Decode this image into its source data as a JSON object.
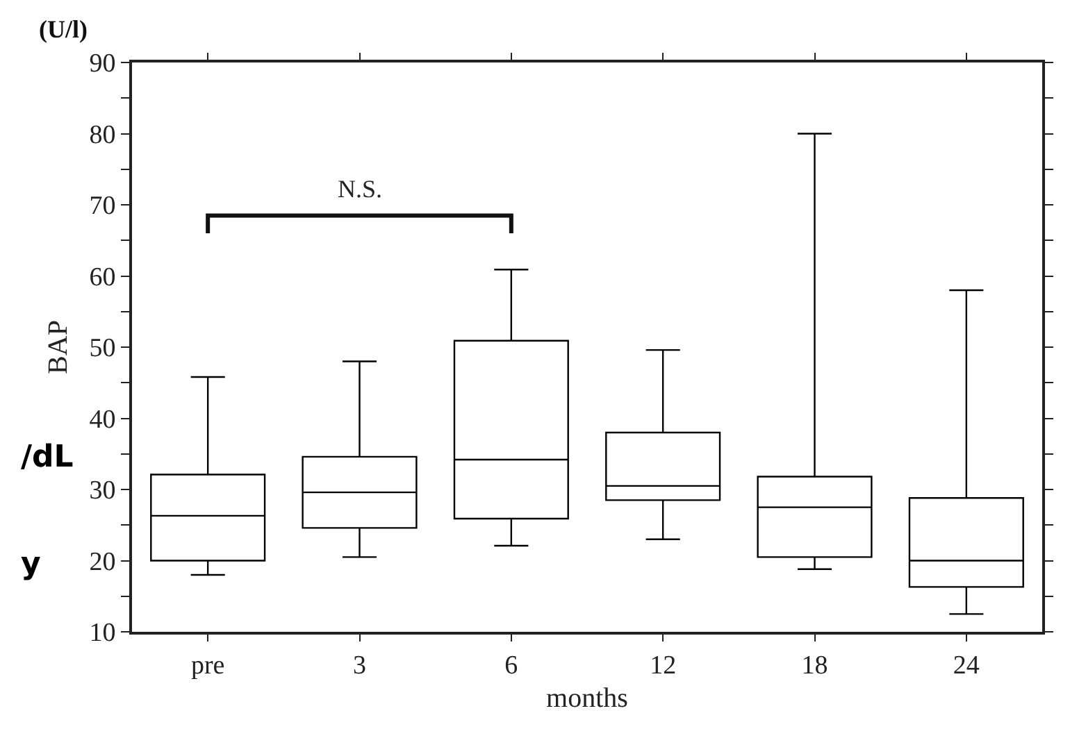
{
  "chart_data": {
    "type": "box",
    "xlabel": "months",
    "ylabel": "BAP",
    "categories": [
      "pre",
      "3",
      "6",
      "12",
      "18",
      "24"
    ],
    "boxes": [
      {
        "low": 18,
        "q1": 20,
        "median": 26.3,
        "q3": 32.1,
        "high": 45.8
      },
      {
        "low": 20.5,
        "q1": 24.6,
        "median": 29.6,
        "q3": 34.6,
        "high": 48
      },
      {
        "low": 22.1,
        "q1": 25.9,
        "median": 34.2,
        "q3": 50.9,
        "high": 60.9
      },
      {
        "low": 23,
        "q1": 28.5,
        "median": 30.5,
        "q3": 38,
        "high": 49.6
      },
      {
        "low": 18.8,
        "q1": 20.5,
        "median": 27.5,
        "q3": 31.8,
        "high": 80
      },
      {
        "low": 12.5,
        "q1": 16.3,
        "median": 20,
        "q3": 28.8,
        "high": 58
      }
    ],
    "color": "#000000",
    "ylim": [
      10,
      90
    ],
    "yticks": [
      10,
      {
        "value": 15,
        "label": null
      },
      20,
      {
        "value": 25,
        "label": null
      },
      30,
      {
        "value": 35,
        "label": null
      },
      40,
      {
        "value": 45,
        "label": null
      },
      50,
      {
        "value": 55,
        "label": null
      },
      60,
      {
        "value": 65,
        "label": null
      },
      70,
      {
        "value": 75,
        "label": null
      },
      80,
      {
        "value": 85,
        "label": null
      },
      90
    ],
    "annotations": [
      "(U/l)",
      "N.S.",
      "/dL",
      "y"
    ]
  }
}
